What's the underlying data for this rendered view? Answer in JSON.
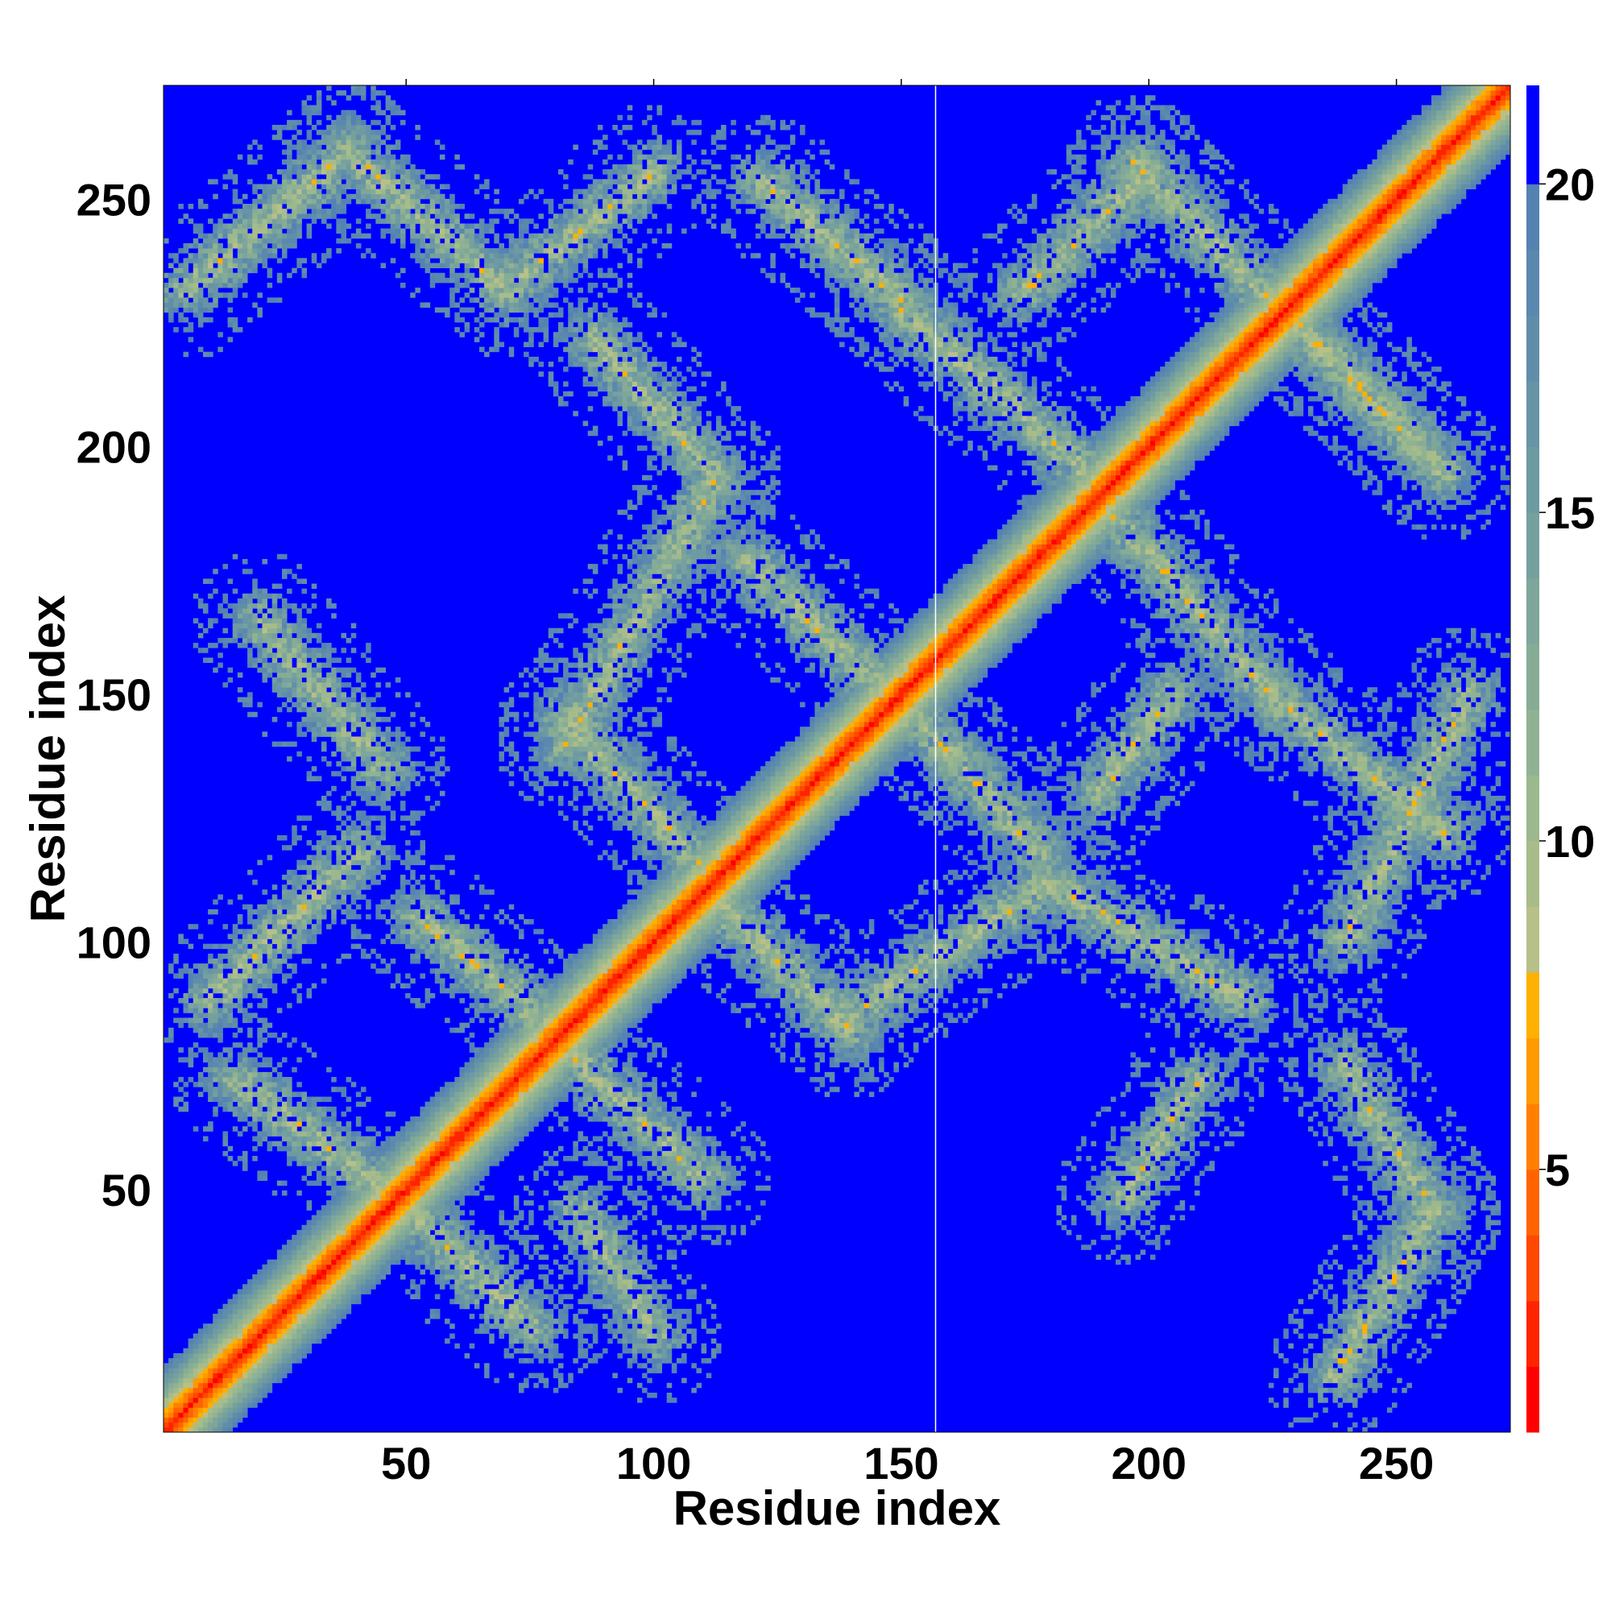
{
  "chart_data": {
    "type": "heatmap",
    "title": "",
    "xlabel": "Residue index",
    "ylabel": "Residue index",
    "n_residues": 273,
    "xlim": [
      1,
      273
    ],
    "ylim": [
      1,
      273
    ],
    "x_ticks": [
      "50",
      "100",
      "150",
      "200",
      "250"
    ],
    "y_ticks": [
      "50",
      "100",
      "150",
      "200",
      "250"
    ],
    "x_tick_values": [
      50,
      100,
      150,
      200,
      250
    ],
    "y_tick_values": [
      50,
      100,
      150,
      200,
      250
    ],
    "colorbar": {
      "ticks": [
        "5",
        "10",
        "15",
        "20"
      ],
      "tick_values": [
        5,
        10,
        15,
        20
      ],
      "range": [
        1,
        21.5
      ],
      "levels": [
        {
          "max": 2,
          "color": "#ff0000"
        },
        {
          "max": 3,
          "color": "#ff2400"
        },
        {
          "max": 4,
          "color": "#ff4800"
        },
        {
          "max": 5,
          "color": "#ff6400"
        },
        {
          "max": 6,
          "color": "#ff8000"
        },
        {
          "max": 7,
          "color": "#ff9a00"
        },
        {
          "max": 8,
          "color": "#ffb000"
        },
        {
          "max": 9,
          "color": "#b8c088"
        },
        {
          "max": 10,
          "color": "#a8bc8a"
        },
        {
          "max": 11,
          "color": "#9cb88e"
        },
        {
          "max": 12,
          "color": "#90b292"
        },
        {
          "max": 13,
          "color": "#86ac96"
        },
        {
          "max": 14,
          "color": "#7ea69a"
        },
        {
          "max": 15,
          "color": "#76a09e"
        },
        {
          "max": 16,
          "color": "#6e9aa2"
        },
        {
          "max": 17,
          "color": "#6894a6"
        },
        {
          "max": 18,
          "color": "#608eaa"
        },
        {
          "max": 19,
          "color": "#5a88ae"
        },
        {
          "max": 20,
          "color": "#5482b2"
        },
        {
          "max": 21.5,
          "color": "#0000ff"
        }
      ]
    },
    "background_color": "#0000ff",
    "vertical_line_x": 157,
    "bands": [
      {
        "x0": 1,
        "y0": 1,
        "x1": 273,
        "y1": 273,
        "kind": "diagonal"
      },
      {
        "x0": 5,
        "y0": 232,
        "x1": 38,
        "y1": 260
      },
      {
        "x0": 38,
        "y0": 260,
        "x1": 70,
        "y1": 232
      },
      {
        "x0": 72,
        "y0": 234,
        "x1": 100,
        "y1": 256
      },
      {
        "x0": 122,
        "y0": 254,
        "x1": 150,
        "y1": 230
      },
      {
        "x0": 150,
        "y0": 228,
        "x1": 190,
        "y1": 193
      },
      {
        "x0": 175,
        "y0": 232,
        "x1": 200,
        "y1": 256
      },
      {
        "x0": 197,
        "y0": 258,
        "x1": 260,
        "y1": 195
      },
      {
        "x0": 228,
        "y0": 228,
        "x1": 255,
        "y1": 200
      },
      {
        "x0": 88,
        "y0": 222,
        "x1": 112,
        "y1": 195
      },
      {
        "x0": 112,
        "y0": 193,
        "x1": 82,
        "y1": 140
      },
      {
        "x0": 82,
        "y0": 145,
        "x1": 110,
        "y1": 115
      },
      {
        "x0": 108,
        "y0": 112,
        "x1": 140,
        "y1": 82
      },
      {
        "x0": 118,
        "y0": 178,
        "x1": 160,
        "y1": 138
      },
      {
        "x0": 160,
        "y0": 138,
        "x1": 178,
        "y1": 118
      },
      {
        "x0": 190,
        "y0": 190,
        "x1": 225,
        "y1": 150
      },
      {
        "x0": 140,
        "y0": 85,
        "x1": 180,
        "y1": 112
      },
      {
        "x0": 180,
        "y0": 112,
        "x1": 220,
        "y1": 88
      },
      {
        "x0": 52,
        "y0": 105,
        "x1": 82,
        "y1": 80
      },
      {
        "x0": 82,
        "y0": 78,
        "x1": 110,
        "y1": 52
      },
      {
        "x0": 15,
        "y0": 72,
        "x1": 48,
        "y1": 48
      },
      {
        "x0": 48,
        "y0": 48,
        "x1": 75,
        "y1": 22
      },
      {
        "x0": 85,
        "y0": 45,
        "x1": 100,
        "y1": 20
      },
      {
        "x0": 238,
        "y0": 12,
        "x1": 258,
        "y1": 45
      },
      {
        "x0": 258,
        "y0": 45,
        "x1": 240,
        "y1": 75
      },
      {
        "x0": 240,
        "y0": 100,
        "x1": 265,
        "y1": 150
      },
      {
        "x0": 225,
        "y0": 150,
        "x1": 260,
        "y1": 122
      },
      {
        "x0": 190,
        "y0": 130,
        "x1": 205,
        "y1": 150
      },
      {
        "x0": 195,
        "y0": 48,
        "x1": 210,
        "y1": 72
      },
      {
        "x0": 40,
        "y0": 118,
        "x1": 10,
        "y1": 88
      },
      {
        "x0": 20,
        "y0": 165,
        "x1": 45,
        "y1": 135
      }
    ]
  }
}
